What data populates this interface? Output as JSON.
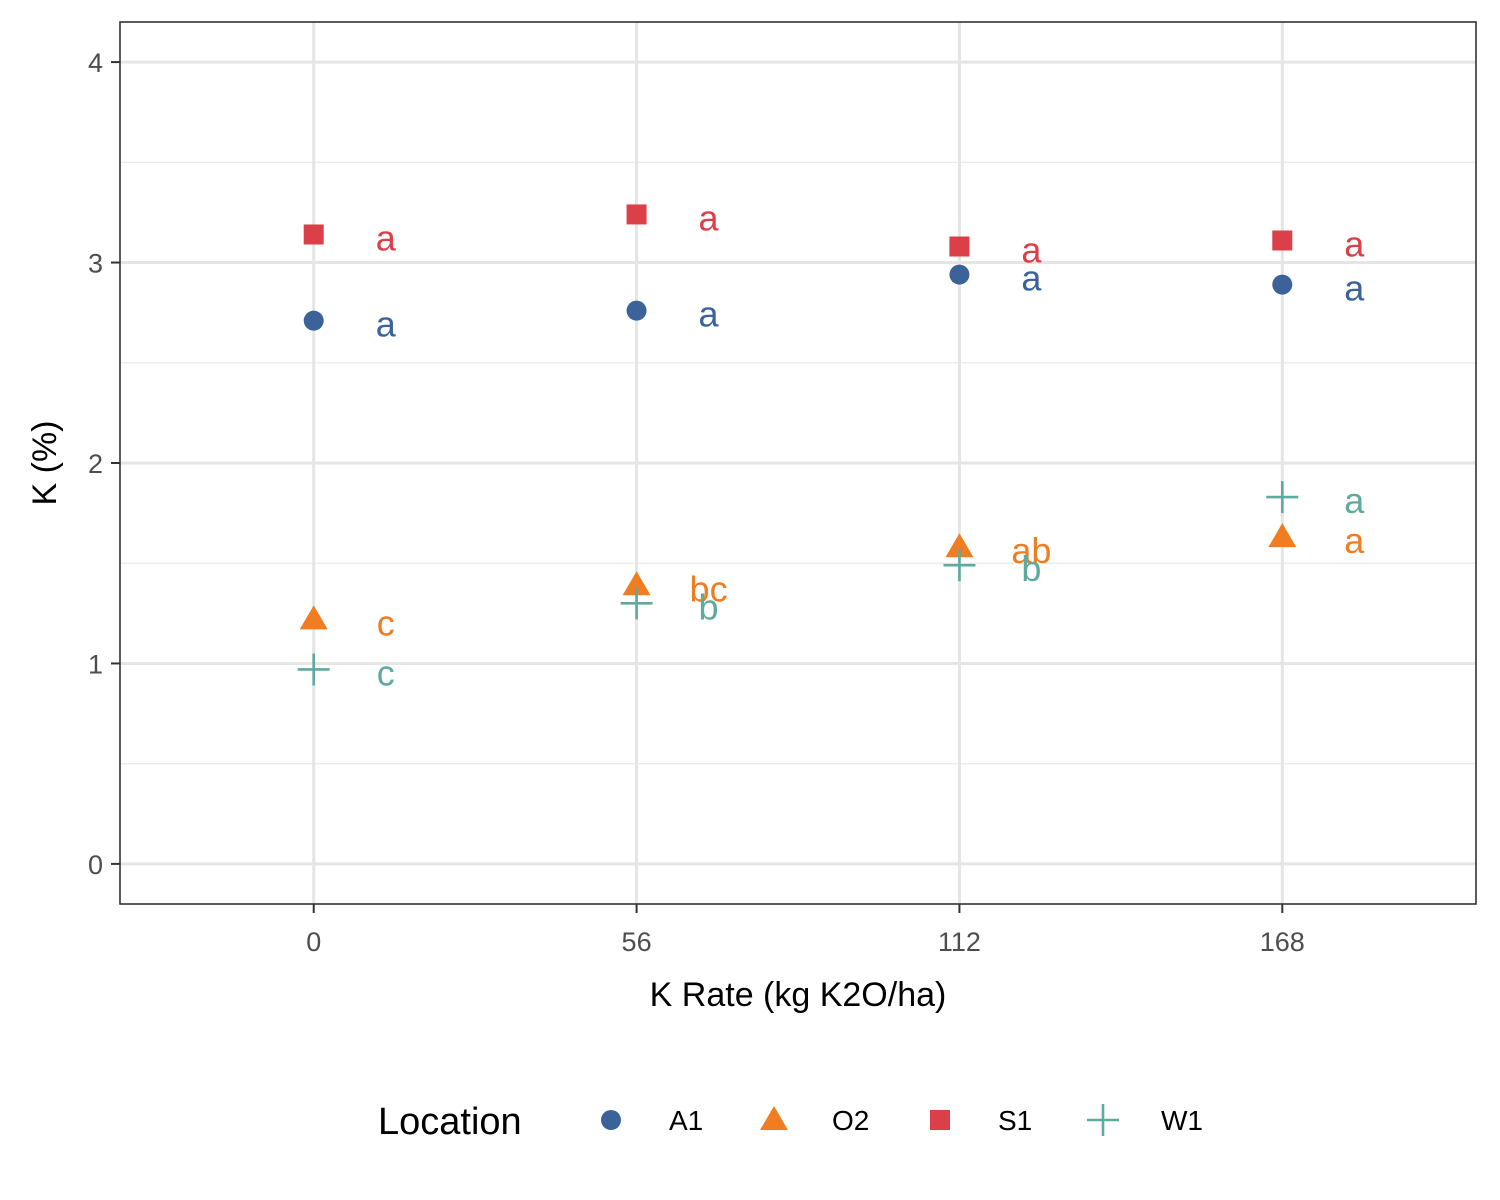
{
  "chart_data": {
    "type": "scatter",
    "title": "",
    "xlabel": "K Rate (kg K2O/ha)",
    "ylabel": "K (%)",
    "x_ticks": [
      0,
      56,
      112,
      168
    ],
    "y_ticks": [
      0,
      1,
      2,
      3,
      4
    ],
    "xlim": [
      -33.6,
      201.6
    ],
    "ylim": [
      -0.2,
      4.2
    ],
    "grid": true,
    "legend": {
      "title": "Location",
      "position": "bottom"
    },
    "series": [
      {
        "name": "A1",
        "color": "#3b6399",
        "shape": "circle",
        "points": [
          {
            "x": 0,
            "y": 2.71,
            "letter": "a"
          },
          {
            "x": 56,
            "y": 2.76,
            "letter": "a"
          },
          {
            "x": 112,
            "y": 2.94,
            "letter": "a"
          },
          {
            "x": 168,
            "y": 2.89,
            "letter": "a"
          }
        ]
      },
      {
        "name": "O2",
        "color": "#f07d21",
        "shape": "triangle",
        "points": [
          {
            "x": 0,
            "y": 1.22,
            "letter": "c"
          },
          {
            "x": 56,
            "y": 1.39,
            "letter": "bc"
          },
          {
            "x": 112,
            "y": 1.58,
            "letter": "ab"
          },
          {
            "x": 168,
            "y": 1.63,
            "letter": "a"
          }
        ]
      },
      {
        "name": "S1",
        "color": "#db3f48",
        "shape": "square",
        "points": [
          {
            "x": 0,
            "y": 3.14,
            "letter": "a"
          },
          {
            "x": 56,
            "y": 3.24,
            "letter": "a"
          },
          {
            "x": 112,
            "y": 3.08,
            "letter": "a"
          },
          {
            "x": 168,
            "y": 3.11,
            "letter": "a"
          }
        ]
      },
      {
        "name": "W1",
        "color": "#5eaa9e",
        "shape": "plus",
        "points": [
          {
            "x": 0,
            "y": 0.97,
            "letter": "c"
          },
          {
            "x": 56,
            "y": 1.3,
            "letter": "b"
          },
          {
            "x": 112,
            "y": 1.49,
            "letter": "b"
          },
          {
            "x": 168,
            "y": 1.83,
            "letter": "a"
          }
        ]
      }
    ]
  }
}
